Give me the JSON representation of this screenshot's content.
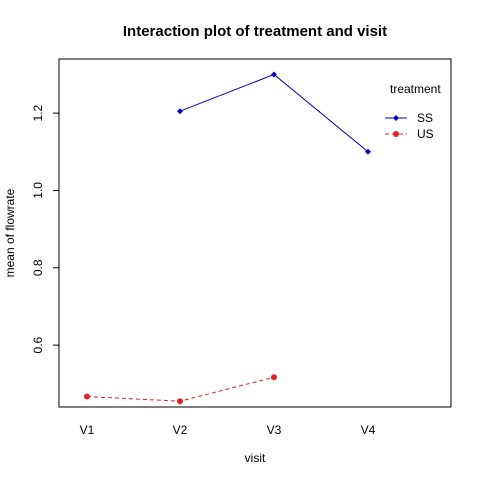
{
  "chart_data": {
    "type": "line",
    "title": "Interaction plot of treatment and visit",
    "xlabel": "visit",
    "ylabel": "mean of  flowrate",
    "categories": [
      "V1",
      "V2",
      "V3",
      "V4"
    ],
    "y_ticks": [
      0.6,
      0.8,
      1.0,
      1.2
    ],
    "y_tick_labels": [
      "0.6",
      "0.8",
      "1.0",
      "1.2"
    ],
    "ylim": [
      0.44,
      1.34
    ],
    "grid": false,
    "legend": {
      "title": "treatment",
      "position": "top-right"
    },
    "series": [
      {
        "name": "SS",
        "color": "#0000cd",
        "line_style": "solid",
        "marker": "diamond",
        "values": [
          null,
          1.205,
          1.3,
          1.1
        ]
      },
      {
        "name": "US",
        "color": "#e8202a",
        "line_style": "dashed",
        "marker": "circle",
        "values": [
          0.467,
          0.455,
          0.517,
          null
        ]
      }
    ]
  }
}
